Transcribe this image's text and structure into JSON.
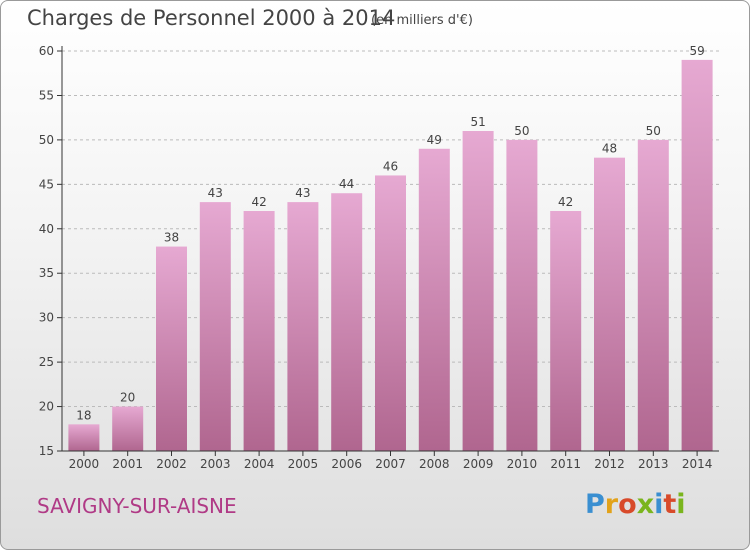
{
  "header": {
    "title": "Charges de Personnel 2000 à 2014",
    "subtitle": "(en milliers d'€)"
  },
  "footer": {
    "commune": "SAVIGNY-SUR-AISNE",
    "logo": "Proxiti"
  },
  "colors": {
    "bar_top": "#e6a9d2",
    "bar_bottom": "#b0668f",
    "axis": "#333333",
    "grid": "#bbbbbb",
    "commune": "#b03a86"
  },
  "chart_data": {
    "type": "bar",
    "title": "Charges de Personnel 2000 à 2014",
    "subtitle": "(en milliers d'€)",
    "categories": [
      "2000",
      "2001",
      "2002",
      "2003",
      "2004",
      "2005",
      "2006",
      "2007",
      "2008",
      "2009",
      "2010",
      "2011",
      "2012",
      "2013",
      "2014"
    ],
    "values": [
      18,
      20,
      38,
      43,
      42,
      43,
      44,
      46,
      49,
      51,
      50,
      42,
      48,
      50,
      59
    ],
    "ylim": [
      15,
      60
    ],
    "yticks": [
      15,
      20,
      25,
      30,
      35,
      40,
      45,
      50,
      55,
      60
    ],
    "grid": "horizontal dashed",
    "data_labels": true
  }
}
